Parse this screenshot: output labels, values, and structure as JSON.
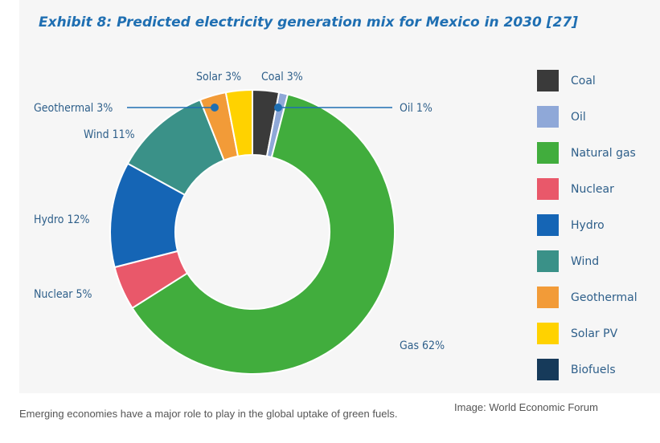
{
  "chart_data": {
    "type": "pie",
    "style": "donut",
    "title": "Exhibit 8: Predicted electricity generation mix for Mexico in 2030 [27]",
    "slices": [
      {
        "name": "Coal",
        "label": "Coal 3%",
        "value": 3,
        "color": "#3a3a3a"
      },
      {
        "name": "Oil",
        "label": "Oil 1%",
        "value": 1,
        "color": "#8fa8d8"
      },
      {
        "name": "Natural gas",
        "label": "Gas 62%",
        "value": 62,
        "color": "#41ad3d"
      },
      {
        "name": "Nuclear",
        "label": "Nuclear 5%",
        "value": 5,
        "color": "#e9586a"
      },
      {
        "name": "Hydro",
        "label": "Hydro 12%",
        "value": 12,
        "color": "#1565b5"
      },
      {
        "name": "Wind",
        "label": "Wind 11%",
        "value": 11,
        "color": "#3a9188"
      },
      {
        "name": "Geothermal",
        "label": "Geothermal 3%",
        "value": 3,
        "color": "#f29b38"
      },
      {
        "name": "Solar PV",
        "label": "Solar 3%",
        "value": 3,
        "color": "#ffd200"
      }
    ],
    "legend": [
      {
        "label": "Coal",
        "color": "#3a3a3a"
      },
      {
        "label": "Oil",
        "color": "#8fa8d8"
      },
      {
        "label": "Natural gas",
        "color": "#41ad3d"
      },
      {
        "label": "Nuclear",
        "color": "#e9586a"
      },
      {
        "label": "Hydro",
        "color": "#1565b5"
      },
      {
        "label": "Wind",
        "color": "#3a9188"
      },
      {
        "label": "Geothermal",
        "color": "#f29b38"
      },
      {
        "label": "Solar PV",
        "color": "#ffd200"
      },
      {
        "label": "Biofuels",
        "color": "#163a5a"
      }
    ],
    "legend_position": "right"
  },
  "caption": "Emerging economies have a major role to play in the global uptake of green fuels.",
  "credit": "Image: World Economic Forum"
}
